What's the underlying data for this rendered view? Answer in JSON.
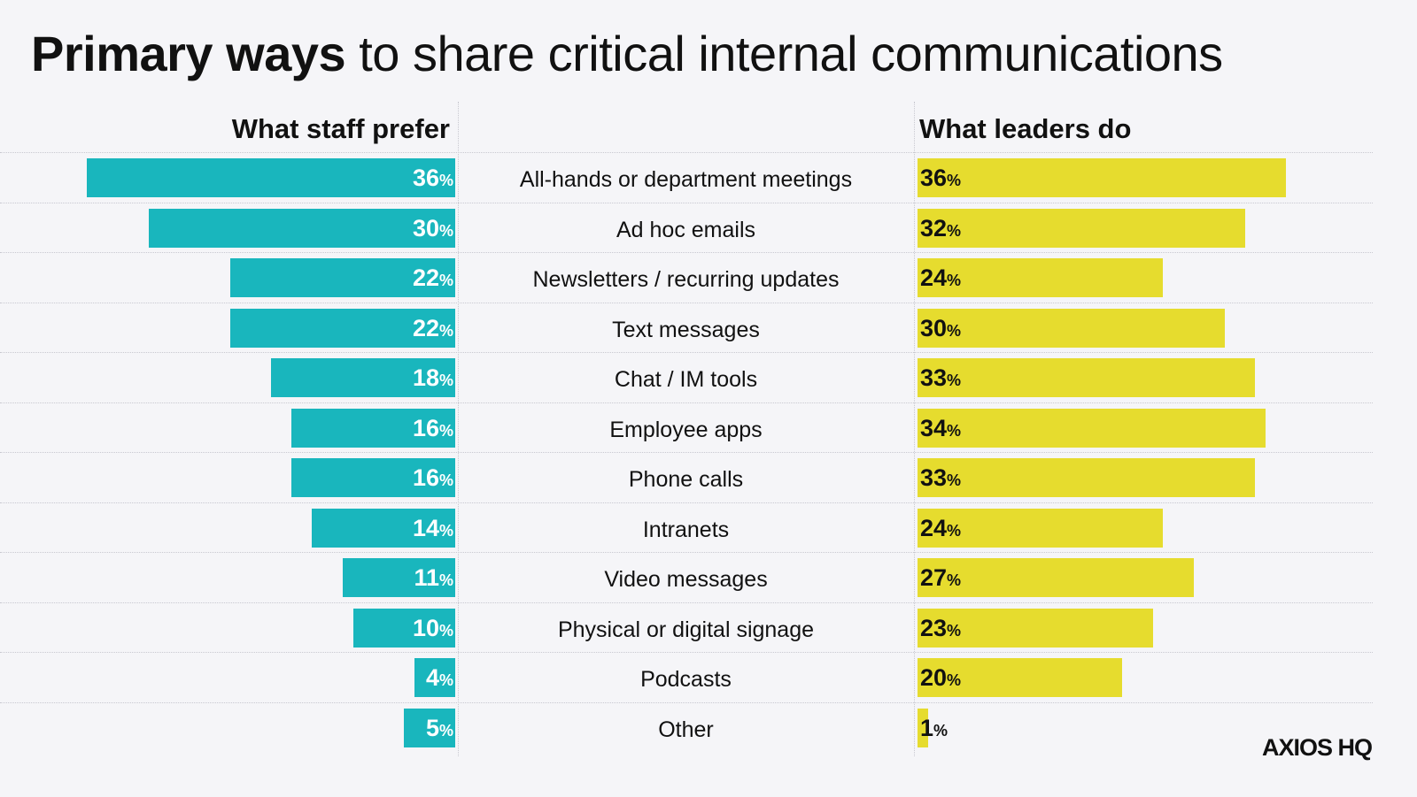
{
  "chart_data": {
    "type": "bar",
    "title_bold": "Primary ways",
    "title_rest": "to share critical internal communications",
    "categories": [
      "All-hands or department meetings",
      "Ad hoc emails",
      "Newsletters / recurring updates",
      "Text messages",
      "Chat / IM tools",
      "Employee apps",
      "Phone calls",
      "Intranets",
      "Video messages",
      "Physical or digital signage",
      "Podcasts",
      "Other"
    ],
    "series": [
      {
        "name": "What staff prefer",
        "values": [
          36,
          30,
          22,
          22,
          18,
          16,
          16,
          14,
          11,
          10,
          4,
          5
        ],
        "color": "#19b6bd",
        "direction": "left"
      },
      {
        "name": "What leaders do",
        "values": [
          36,
          32,
          24,
          30,
          33,
          34,
          33,
          24,
          27,
          23,
          20,
          1
        ],
        "color": "#e6dc2e",
        "direction": "right"
      }
    ],
    "unit": "%",
    "xlim": [
      0,
      36
    ],
    "grid": true
  },
  "logo": "AXIOS HQ"
}
